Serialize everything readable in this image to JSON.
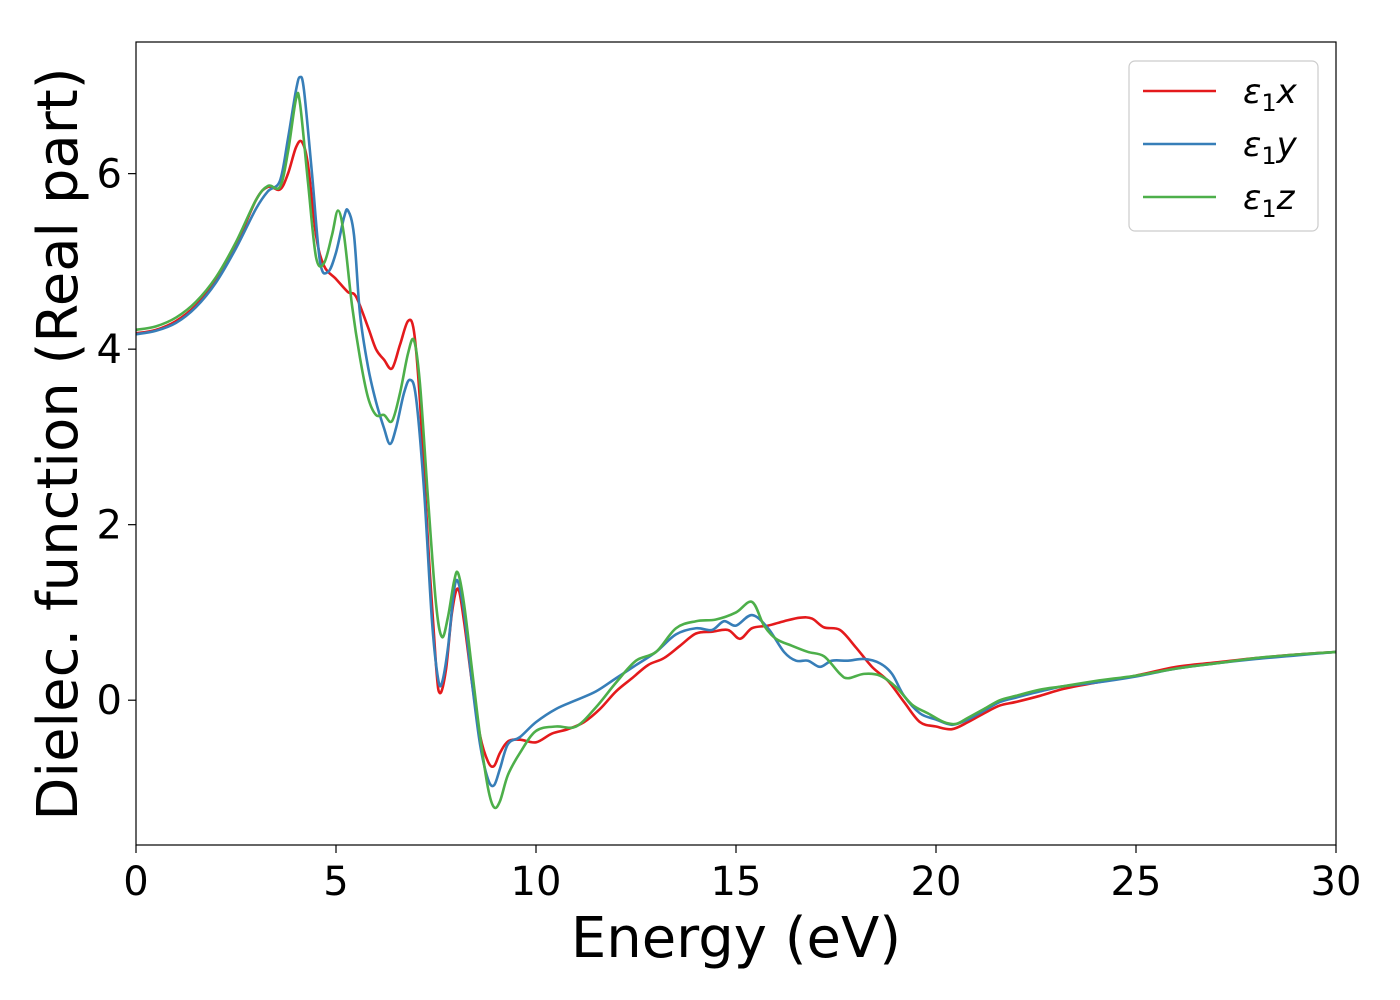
{
  "chart_data": {
    "type": "line",
    "xlabel": "Energy (eV)",
    "ylabel": "Dielec. function (Real part)",
    "xlim": [
      0,
      30
    ],
    "ylim": [
      -1.65,
      7.5
    ],
    "xticks": [
      0,
      5,
      10,
      15,
      20,
      25,
      30
    ],
    "yticks": [
      0,
      2,
      4,
      6
    ],
    "grid": false,
    "legend_position": "top-right",
    "series": [
      {
        "name": "ε1x",
        "legend": {
          "symbol": "ε",
          "sub": "1",
          "var": "x"
        },
        "color": "#e41a1c",
        "points": [
          [
            0,
            4.18
          ],
          [
            0.5,
            4.22
          ],
          [
            1,
            4.32
          ],
          [
            1.5,
            4.5
          ],
          [
            2,
            4.78
          ],
          [
            2.5,
            5.18
          ],
          [
            3,
            5.7
          ],
          [
            3.3,
            5.85
          ],
          [
            3.6,
            5.82
          ],
          [
            3.8,
            6.0
          ],
          [
            4.0,
            6.3
          ],
          [
            4.15,
            6.36
          ],
          [
            4.3,
            6.1
          ],
          [
            4.5,
            5.3
          ],
          [
            4.7,
            4.95
          ],
          [
            5.0,
            4.8
          ],
          [
            5.3,
            4.65
          ],
          [
            5.5,
            4.6
          ],
          [
            5.8,
            4.25
          ],
          [
            6.0,
            4.0
          ],
          [
            6.2,
            3.88
          ],
          [
            6.4,
            3.78
          ],
          [
            6.6,
            4.05
          ],
          [
            6.8,
            4.32
          ],
          [
            6.95,
            4.2
          ],
          [
            7.1,
            3.4
          ],
          [
            7.3,
            1.8
          ],
          [
            7.5,
            0.4
          ],
          [
            7.6,
            0.08
          ],
          [
            7.75,
            0.35
          ],
          [
            7.9,
            1.0
          ],
          [
            8.05,
            1.27
          ],
          [
            8.2,
            0.9
          ],
          [
            8.4,
            0.2
          ],
          [
            8.6,
            -0.4
          ],
          [
            8.8,
            -0.7
          ],
          [
            8.95,
            -0.75
          ],
          [
            9.1,
            -0.6
          ],
          [
            9.3,
            -0.47
          ],
          [
            9.6,
            -0.45
          ],
          [
            10.0,
            -0.48
          ],
          [
            10.4,
            -0.38
          ],
          [
            10.8,
            -0.33
          ],
          [
            11.2,
            -0.25
          ],
          [
            11.6,
            -0.1
          ],
          [
            12,
            0.1
          ],
          [
            12.4,
            0.25
          ],
          [
            12.8,
            0.4
          ],
          [
            13.2,
            0.48
          ],
          [
            13.6,
            0.62
          ],
          [
            14,
            0.76
          ],
          [
            14.4,
            0.78
          ],
          [
            14.8,
            0.8
          ],
          [
            15.1,
            0.7
          ],
          [
            15.4,
            0.82
          ],
          [
            15.8,
            0.85
          ],
          [
            16.2,
            0.9
          ],
          [
            16.6,
            0.94
          ],
          [
            16.9,
            0.93
          ],
          [
            17.2,
            0.83
          ],
          [
            17.6,
            0.8
          ],
          [
            18.0,
            0.6
          ],
          [
            18.4,
            0.38
          ],
          [
            18.8,
            0.22
          ],
          [
            19.2,
            -0.02
          ],
          [
            19.6,
            -0.25
          ],
          [
            20.0,
            -0.3
          ],
          [
            20.4,
            -0.33
          ],
          [
            20.8,
            -0.25
          ],
          [
            21.2,
            -0.15
          ],
          [
            21.6,
            -0.06
          ],
          [
            22,
            -0.02
          ],
          [
            22.6,
            0.05
          ],
          [
            23.2,
            0.13
          ],
          [
            24,
            0.2
          ],
          [
            25,
            0.28
          ],
          [
            26,
            0.38
          ],
          [
            27,
            0.43
          ],
          [
            28,
            0.48
          ],
          [
            29,
            0.52
          ],
          [
            30,
            0.55
          ]
        ]
      },
      {
        "name": "ε1y",
        "legend": {
          "symbol": "ε",
          "sub": "1",
          "var": "y"
        },
        "color": "#377eb8",
        "points": [
          [
            0,
            4.17
          ],
          [
            0.5,
            4.21
          ],
          [
            1,
            4.3
          ],
          [
            1.5,
            4.48
          ],
          [
            2,
            4.76
          ],
          [
            2.5,
            5.15
          ],
          [
            3,
            5.6
          ],
          [
            3.3,
            5.8
          ],
          [
            3.6,
            5.92
          ],
          [
            3.8,
            6.4
          ],
          [
            4.0,
            6.95
          ],
          [
            4.1,
            7.1
          ],
          [
            4.2,
            6.95
          ],
          [
            4.4,
            6.0
          ],
          [
            4.6,
            5.0
          ],
          [
            4.8,
            4.88
          ],
          [
            5.0,
            5.1
          ],
          [
            5.2,
            5.5
          ],
          [
            5.3,
            5.58
          ],
          [
            5.45,
            5.3
          ],
          [
            5.6,
            4.4
          ],
          [
            5.8,
            3.8
          ],
          [
            6.0,
            3.4
          ],
          [
            6.2,
            3.1
          ],
          [
            6.35,
            2.92
          ],
          [
            6.5,
            3.1
          ],
          [
            6.7,
            3.5
          ],
          [
            6.85,
            3.65
          ],
          [
            7.0,
            3.45
          ],
          [
            7.2,
            2.4
          ],
          [
            7.4,
            0.9
          ],
          [
            7.55,
            0.25
          ],
          [
            7.65,
            0.2
          ],
          [
            7.8,
            0.6
          ],
          [
            7.95,
            1.25
          ],
          [
            8.05,
            1.35
          ],
          [
            8.2,
            1.0
          ],
          [
            8.4,
            0.2
          ],
          [
            8.6,
            -0.5
          ],
          [
            8.8,
            -0.9
          ],
          [
            8.95,
            -0.97
          ],
          [
            9.1,
            -0.78
          ],
          [
            9.3,
            -0.5
          ],
          [
            9.6,
            -0.42
          ],
          [
            10,
            -0.25
          ],
          [
            10.5,
            -0.1
          ],
          [
            11,
            0.0
          ],
          [
            11.5,
            0.1
          ],
          [
            12,
            0.25
          ],
          [
            12.5,
            0.4
          ],
          [
            13,
            0.55
          ],
          [
            13.5,
            0.75
          ],
          [
            14,
            0.82
          ],
          [
            14.4,
            0.8
          ],
          [
            14.7,
            0.9
          ],
          [
            15.0,
            0.85
          ],
          [
            15.4,
            0.97
          ],
          [
            15.8,
            0.82
          ],
          [
            16.2,
            0.55
          ],
          [
            16.5,
            0.45
          ],
          [
            16.8,
            0.45
          ],
          [
            17.1,
            0.38
          ],
          [
            17.4,
            0.45
          ],
          [
            17.8,
            0.45
          ],
          [
            18.2,
            0.47
          ],
          [
            18.6,
            0.42
          ],
          [
            18.9,
            0.3
          ],
          [
            19.2,
            0.05
          ],
          [
            19.6,
            -0.15
          ],
          [
            20.0,
            -0.22
          ],
          [
            20.4,
            -0.28
          ],
          [
            20.8,
            -0.22
          ],
          [
            21.2,
            -0.12
          ],
          [
            21.6,
            -0.02
          ],
          [
            22,
            0.03
          ],
          [
            22.6,
            0.1
          ],
          [
            23.2,
            0.16
          ],
          [
            24,
            0.2
          ],
          [
            25,
            0.27
          ],
          [
            26,
            0.36
          ],
          [
            27,
            0.42
          ],
          [
            28,
            0.47
          ],
          [
            29,
            0.51
          ],
          [
            30,
            0.55
          ]
        ]
      },
      {
        "name": "ε1z",
        "legend": {
          "symbol": "ε",
          "sub": "1",
          "var": "z"
        },
        "color": "#4daf4a",
        "points": [
          [
            0,
            4.22
          ],
          [
            0.5,
            4.26
          ],
          [
            1,
            4.36
          ],
          [
            1.5,
            4.54
          ],
          [
            2,
            4.82
          ],
          [
            2.5,
            5.22
          ],
          [
            3,
            5.7
          ],
          [
            3.3,
            5.86
          ],
          [
            3.6,
            5.85
          ],
          [
            3.8,
            6.25
          ],
          [
            4.0,
            6.85
          ],
          [
            4.1,
            6.8
          ],
          [
            4.3,
            5.9
          ],
          [
            4.5,
            5.05
          ],
          [
            4.7,
            4.98
          ],
          [
            4.9,
            5.3
          ],
          [
            5.05,
            5.58
          ],
          [
            5.2,
            5.3
          ],
          [
            5.4,
            4.5
          ],
          [
            5.6,
            3.9
          ],
          [
            5.8,
            3.45
          ],
          [
            6.0,
            3.25
          ],
          [
            6.2,
            3.25
          ],
          [
            6.4,
            3.18
          ],
          [
            6.6,
            3.5
          ],
          [
            6.8,
            3.95
          ],
          [
            6.95,
            4.1
          ],
          [
            7.1,
            3.6
          ],
          [
            7.3,
            2.3
          ],
          [
            7.5,
            1.1
          ],
          [
            7.65,
            0.72
          ],
          [
            7.8,
            0.95
          ],
          [
            7.95,
            1.35
          ],
          [
            8.05,
            1.45
          ],
          [
            8.2,
            1.1
          ],
          [
            8.4,
            0.35
          ],
          [
            8.6,
            -0.4
          ],
          [
            8.8,
            -1.0
          ],
          [
            8.95,
            -1.22
          ],
          [
            9.1,
            -1.15
          ],
          [
            9.3,
            -0.85
          ],
          [
            9.6,
            -0.6
          ],
          [
            10,
            -0.35
          ],
          [
            10.5,
            -0.3
          ],
          [
            11,
            -0.3
          ],
          [
            11.5,
            -0.08
          ],
          [
            12,
            0.2
          ],
          [
            12.5,
            0.45
          ],
          [
            13,
            0.55
          ],
          [
            13.5,
            0.82
          ],
          [
            14,
            0.9
          ],
          [
            14.5,
            0.92
          ],
          [
            15.0,
            1.0
          ],
          [
            15.4,
            1.12
          ],
          [
            15.7,
            0.85
          ],
          [
            16.0,
            0.7
          ],
          [
            16.4,
            0.62
          ],
          [
            16.8,
            0.55
          ],
          [
            17.2,
            0.5
          ],
          [
            17.6,
            0.3
          ],
          [
            17.8,
            0.25
          ],
          [
            18.2,
            0.3
          ],
          [
            18.6,
            0.28
          ],
          [
            19.0,
            0.15
          ],
          [
            19.4,
            -0.05
          ],
          [
            19.8,
            -0.15
          ],
          [
            20.2,
            -0.25
          ],
          [
            20.5,
            -0.27
          ],
          [
            20.8,
            -0.2
          ],
          [
            21.2,
            -0.1
          ],
          [
            21.6,
            0.0
          ],
          [
            22,
            0.05
          ],
          [
            22.6,
            0.12
          ],
          [
            23.2,
            0.16
          ],
          [
            24,
            0.22
          ],
          [
            25,
            0.28
          ],
          [
            26,
            0.36
          ],
          [
            27,
            0.42
          ],
          [
            28,
            0.48
          ],
          [
            29,
            0.52
          ],
          [
            30,
            0.55
          ]
        ]
      }
    ]
  }
}
